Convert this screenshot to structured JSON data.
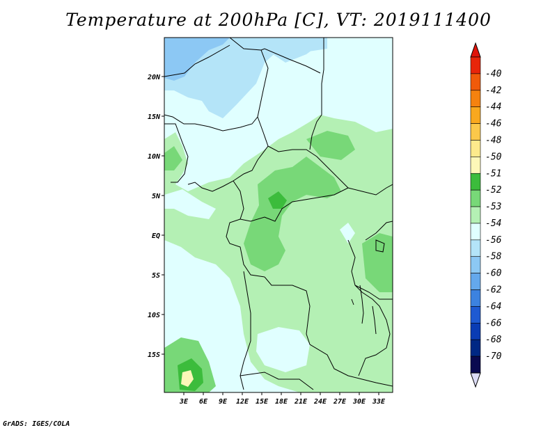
{
  "title": "Temperature at 200hPa [C], VT: 2019111400",
  "credit": "GrADS: IGES/COLA",
  "map": {
    "lat_labels": [
      "20N",
      "15N",
      "10N",
      "5N",
      "EQ",
      "5S",
      "10S",
      "15S"
    ],
    "lon_labels": [
      "3E",
      "6E",
      "9E",
      "12E",
      "15E",
      "18E",
      "21E",
      "24E",
      "27E",
      "30E",
      "33E"
    ]
  },
  "colorbar": {
    "labels": [
      "-40",
      "-42",
      "-44",
      "-46",
      "-48",
      "-50",
      "-51",
      "-52",
      "-53",
      "-54",
      "-56",
      "-58",
      "-60",
      "-62",
      "-64",
      "-66",
      "-68",
      "-70"
    ],
    "colors": [
      "#e8250a",
      "#f05a0a",
      "#f5820f",
      "#f9a81e",
      "#fbc84a",
      "#fdea8c",
      "#fdf7b8",
      "#3cbc3c",
      "#78d878",
      "#b4f0b4",
      "#e0ffff",
      "#b4e4f8",
      "#8cc8f4",
      "#64a8ec",
      "#3c82e0",
      "#1e5ad2",
      "#0a3cb4",
      "#002884",
      "#0a0a50"
    ],
    "top_arrow_color": "#e0140a",
    "bottom_arrow_color": "#dcdcf5"
  }
}
